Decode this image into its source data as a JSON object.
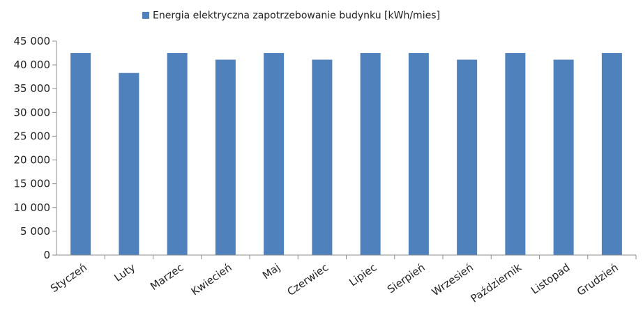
{
  "chart_data": {
    "type": "bar",
    "categories": [
      "Styczeń",
      "Luty",
      "Marzec",
      "Kwiecień",
      "Maj",
      "Czerwiec",
      "Lipiec",
      "Sierpień",
      "Wrzesień",
      "Październik",
      "Listopad",
      "Grudzień"
    ],
    "series": [
      {
        "name": "Energia elektryczna zapotrzebowanie budynku [kWh/mies]",
        "values": [
          42500,
          38300,
          42500,
          41100,
          42500,
          41100,
          42500,
          42500,
          41100,
          42500,
          41100,
          42500
        ]
      }
    ],
    "ylim": [
      0,
      45000
    ],
    "yticks": [
      "0",
      "5 000",
      "10 000",
      "15 000",
      "20 000",
      "25 000",
      "30 000",
      "35 000",
      "40 000",
      "45 000"
    ],
    "legend_position": "top-center",
    "grid": false,
    "colors": {
      "bar": "#4f81bd",
      "axis": "#8c8c8c"
    }
  }
}
